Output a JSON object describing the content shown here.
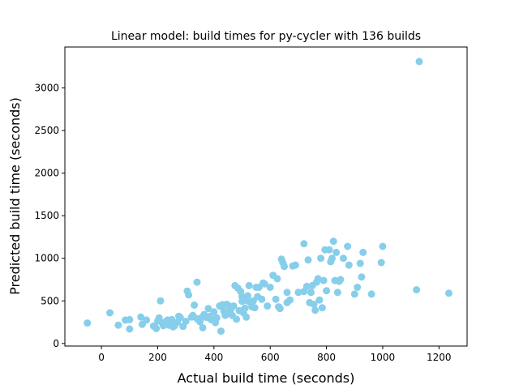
{
  "chart_data": {
    "type": "scatter",
    "title": "Linear model: build times for py-cycler with 136 builds",
    "xlabel": "Actual build time (seconds)",
    "ylabel": "Predicted build time (seconds)",
    "xlim": [
      -130,
      1300
    ],
    "ylim": [
      -30,
      3480
    ],
    "xticks": [
      0,
      200,
      400,
      600,
      800,
      1000,
      1200
    ],
    "yticks": [
      0,
      500,
      1000,
      1500,
      2000,
      2500,
      3000
    ],
    "grid": false,
    "point_color": "#87ceeb",
    "series": [
      {
        "x": [
          -50,
          30,
          60,
          85,
          100,
          100,
          140,
          145,
          160,
          185,
          190,
          195,
          200,
          205,
          210,
          215,
          220,
          230,
          235,
          240,
          250,
          255,
          260,
          270,
          275,
          280,
          290,
          300,
          305,
          310,
          320,
          325,
          330,
          340,
          350,
          355,
          360,
          365,
          375,
          380,
          385,
          390,
          400,
          405,
          410,
          420,
          425,
          430,
          435,
          440,
          445,
          450,
          455,
          460,
          465,
          470,
          475,
          480,
          485,
          490,
          495,
          500,
          505,
          510,
          515,
          520,
          525,
          530,
          535,
          540,
          545,
          550,
          560,
          570,
          575,
          580,
          590,
          600,
          610,
          620,
          625,
          630,
          635,
          640,
          645,
          650,
          660,
          670,
          680,
          690,
          700,
          720,
          730,
          735,
          740,
          745,
          750,
          755,
          760,
          765,
          770,
          775,
          780,
          785,
          790,
          795,
          800,
          810,
          815,
          820,
          825,
          830,
          835,
          840,
          845,
          850,
          860,
          875,
          880,
          900,
          910,
          920,
          925,
          930,
          960,
          995,
          1000,
          1120,
          1130,
          1235,
          500,
          520,
          660,
          720,
          555,
          340
        ],
        "y": [
          240,
          360,
          215,
          275,
          170,
          280,
          310,
          225,
          275,
          205,
          195,
          175,
          265,
          300,
          500,
          245,
          210,
          260,
          275,
          215,
          280,
          195,
          210,
          250,
          320,
          305,
          200,
          260,
          615,
          570,
          310,
          330,
          450,
          290,
          255,
          300,
          185,
          340,
          305,
          410,
          320,
          280,
          370,
          245,
          300,
          440,
          145,
          455,
          380,
          330,
          460,
          450,
          370,
          400,
          330,
          440,
          680,
          285,
          650,
          385,
          610,
          495,
          360,
          415,
          310,
          560,
          680,
          480,
          430,
          500,
          420,
          660,
          660,
          520,
          710,
          700,
          440,
          660,
          800,
          520,
          760,
          430,
          410,
          990,
          950,
          905,
          480,
          510,
          910,
          920,
          600,
          1170,
          670,
          980,
          480,
          600,
          680,
          460,
          390,
          720,
          760,
          510,
          1000,
          420,
          740,
          1100,
          620,
          1100,
          960,
          1000,
          1200,
          740,
          1070,
          600,
          730,
          750,
          1000,
          1140,
          920,
          580,
          660,
          940,
          780,
          1070,
          580,
          950,
          1140,
          630,
          3310,
          590,
          550,
          500,
          600,
          610,
          550,
          720
        ]
      }
    ]
  }
}
